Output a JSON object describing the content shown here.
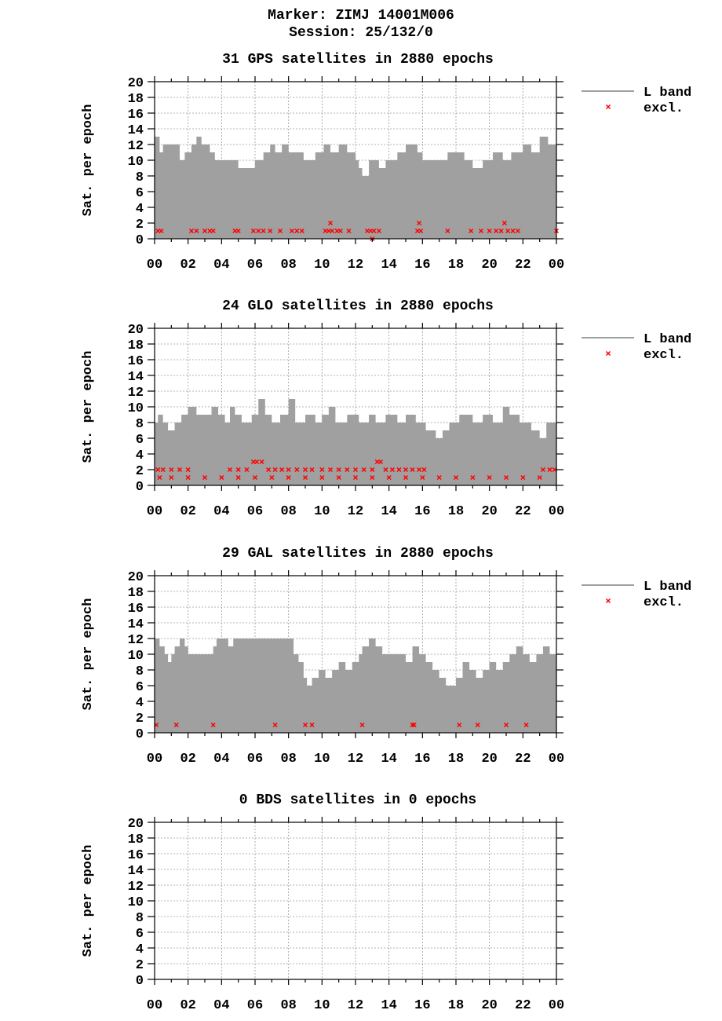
{
  "header": {
    "marker": "Marker: ZIMJ 14001M006",
    "session": "Session: 25/132/0"
  },
  "colors": {
    "l_band": "#a0a0a0",
    "excl": "#ff0000",
    "grid": "#9a9a9a"
  },
  "chart_data": [
    {
      "type": "area",
      "title": "31 GPS satellites in 2880 epochs",
      "ylabel": "Sat. per epoch",
      "ylim": [
        0,
        20
      ],
      "xlim": [
        0,
        24
      ],
      "yticks": [
        "0",
        "2",
        "4",
        "6",
        "8",
        "10",
        "12",
        "14",
        "16",
        "18",
        "20"
      ],
      "xticks": [
        "00",
        "02",
        "04",
        "06",
        "08",
        "10",
        "12",
        "14",
        "16",
        "18",
        "20",
        "22",
        "00"
      ],
      "legend": [
        "L band",
        "excl."
      ],
      "grid": true,
      "legend_position": "right",
      "series": [
        {
          "name": "L band",
          "x": [
            0,
            0.3,
            0.5,
            1.5,
            1.8,
            2.2,
            2.5,
            2.8,
            3.3,
            3.6,
            5,
            6,
            6.5,
            6.9,
            7.2,
            7.6,
            8,
            8.9,
            9.6,
            10.1,
            10.5,
            11,
            11.5,
            12,
            12.2,
            12.4,
            12.8,
            13.4,
            13.8,
            14.5,
            15,
            15.7,
            16,
            16.5,
            17.5,
            18.5,
            19,
            19.6,
            20.2,
            20.8,
            21.3,
            22,
            22.5,
            23,
            23.5,
            24
          ],
          "values": [
            13,
            11,
            12,
            10,
            11,
            12,
            13,
            12,
            11,
            10,
            9,
            10,
            11,
            12,
            11,
            12,
            11,
            10,
            11,
            12,
            11,
            12,
            11,
            10,
            9,
            8,
            10,
            9,
            10,
            11,
            12,
            11,
            10,
            10,
            11,
            10,
            9,
            10,
            11,
            10,
            11,
            12,
            11,
            13,
            12,
            11
          ]
        },
        {
          "name": "excl.",
          "points": [
            [
              0.2,
              1
            ],
            [
              0.4,
              1
            ],
            [
              2.2,
              1
            ],
            [
              2.5,
              1
            ],
            [
              3,
              1
            ],
            [
              3.3,
              1
            ],
            [
              3.5,
              1
            ],
            [
              4.8,
              1
            ],
            [
              5.0,
              1
            ],
            [
              5.9,
              1
            ],
            [
              6.2,
              1
            ],
            [
              6.5,
              1
            ],
            [
              6.9,
              1
            ],
            [
              7.5,
              1
            ],
            [
              8.2,
              1
            ],
            [
              8.5,
              1
            ],
            [
              8.8,
              1
            ],
            [
              10.2,
              1
            ],
            [
              10.4,
              1
            ],
            [
              10.5,
              2
            ],
            [
              10.6,
              1
            ],
            [
              10.9,
              1
            ],
            [
              11.1,
              1
            ],
            [
              11.6,
              1
            ],
            [
              12.7,
              1
            ],
            [
              12.9,
              1
            ],
            [
              13.0,
              0
            ],
            [
              13.1,
              1
            ],
            [
              13.4,
              1
            ],
            [
              15.7,
              1
            ],
            [
              15.8,
              2
            ],
            [
              15.9,
              1
            ],
            [
              17.5,
              1
            ],
            [
              18.9,
              1
            ],
            [
              19.5,
              1
            ],
            [
              20.0,
              1
            ],
            [
              20.4,
              1
            ],
            [
              20.7,
              1
            ],
            [
              20.9,
              2
            ],
            [
              21.1,
              1
            ],
            [
              21.4,
              1
            ],
            [
              21.7,
              1
            ],
            [
              24,
              1
            ]
          ]
        }
      ]
    },
    {
      "type": "area",
      "title": "24 GLO satellites in 2880 epochs",
      "ylabel": "Sat. per epoch",
      "ylim": [
        0,
        20
      ],
      "xlim": [
        0,
        24
      ],
      "yticks": [
        "0",
        "2",
        "4",
        "6",
        "8",
        "10",
        "12",
        "14",
        "16",
        "18",
        "20"
      ],
      "xticks": [
        "00",
        "02",
        "04",
        "06",
        "08",
        "10",
        "12",
        "14",
        "16",
        "18",
        "20",
        "22",
        "00"
      ],
      "legend": [
        "L band",
        "excl."
      ],
      "grid": true,
      "legend_position": "right",
      "series": [
        {
          "name": "L band",
          "x": [
            0,
            0.2,
            0.5,
            0.8,
            1.2,
            1.6,
            2.0,
            2.5,
            3.0,
            3.4,
            3.8,
            4.2,
            4.5,
            4.8,
            5.2,
            5.8,
            6.2,
            6.6,
            7.0,
            7.5,
            8.0,
            8.4,
            9.0,
            9.6,
            10.0,
            10.4,
            10.8,
            11.5,
            12.2,
            12.8,
            13.2,
            13.8,
            14.5,
            15.0,
            15.6,
            16.2,
            16.8,
            17.2,
            17.6,
            18.2,
            19.0,
            19.6,
            20.2,
            20.8,
            21.2,
            21.8,
            22.5,
            23.0,
            23.4,
            24
          ],
          "values": [
            8,
            9,
            8,
            7,
            8,
            9,
            10,
            9,
            9,
            10,
            9,
            8,
            10,
            9,
            8,
            9,
            11,
            9,
            8,
            9,
            11,
            8,
            9,
            8,
            9,
            10,
            8,
            9,
            8,
            9,
            8,
            9,
            8,
            9,
            8,
            7,
            6,
            7,
            8,
            9,
            8,
            9,
            8,
            10,
            9,
            8,
            7,
            6,
            8,
            8
          ]
        },
        {
          "name": "excl.",
          "points": [
            [
              0.2,
              2
            ],
            [
              0.5,
              2
            ],
            [
              1.0,
              2
            ],
            [
              1.5,
              2
            ],
            [
              2.0,
              2
            ],
            [
              4.5,
              2
            ],
            [
              5.0,
              2
            ],
            [
              5.5,
              2
            ],
            [
              5.9,
              3
            ],
            [
              6.1,
              3
            ],
            [
              6.4,
              3
            ],
            [
              6.8,
              2
            ],
            [
              7.2,
              2
            ],
            [
              7.6,
              2
            ],
            [
              8.0,
              2
            ],
            [
              8.5,
              2
            ],
            [
              9.0,
              2
            ],
            [
              9.4,
              2
            ],
            [
              10.0,
              2
            ],
            [
              10.5,
              2
            ],
            [
              11.0,
              2
            ],
            [
              11.5,
              2
            ],
            [
              12.0,
              2
            ],
            [
              12.5,
              2
            ],
            [
              13.0,
              2
            ],
            [
              13.3,
              3
            ],
            [
              13.5,
              3
            ],
            [
              13.8,
              2
            ],
            [
              14.2,
              2
            ],
            [
              14.6,
              2
            ],
            [
              15.0,
              2
            ],
            [
              15.4,
              2
            ],
            [
              15.8,
              2
            ],
            [
              16.1,
              2
            ],
            [
              23.2,
              2
            ],
            [
              23.6,
              2
            ],
            [
              23.9,
              2
            ],
            [
              0.3,
              1
            ],
            [
              1.0,
              1
            ],
            [
              2.0,
              1
            ],
            [
              3.0,
              1
            ],
            [
              4.0,
              1
            ],
            [
              5.0,
              1
            ],
            [
              6.0,
              1
            ],
            [
              7.0,
              1
            ],
            [
              8.0,
              1
            ],
            [
              9.0,
              1
            ],
            [
              10.0,
              1
            ],
            [
              11.0,
              1
            ],
            [
              12.0,
              1
            ],
            [
              13.0,
              1
            ],
            [
              14.0,
              1
            ],
            [
              15.0,
              1
            ],
            [
              16.0,
              1
            ],
            [
              17.0,
              1
            ],
            [
              18.0,
              1
            ],
            [
              19.0,
              1
            ],
            [
              20.0,
              1
            ],
            [
              21.0,
              1
            ],
            [
              22.0,
              1
            ],
            [
              23.0,
              1
            ]
          ]
        }
      ]
    },
    {
      "type": "area",
      "title": "29 GAL satellites in 2880 epochs",
      "ylabel": "Sat. per epoch",
      "ylim": [
        0,
        20
      ],
      "xlim": [
        0,
        24
      ],
      "yticks": [
        "0",
        "2",
        "4",
        "6",
        "8",
        "10",
        "12",
        "14",
        "16",
        "18",
        "20"
      ],
      "xticks": [
        "00",
        "02",
        "04",
        "06",
        "08",
        "10",
        "12",
        "14",
        "16",
        "18",
        "20",
        "22",
        "00"
      ],
      "legend": [
        "L band",
        "excl."
      ],
      "grid": true,
      "legend_position": "right",
      "series": [
        {
          "name": "L band",
          "x": [
            0,
            0.3,
            0.6,
            0.8,
            1.0,
            1.2,
            1.5,
            1.8,
            2.0,
            2.5,
            3.0,
            3.5,
            3.7,
            4.0,
            4.4,
            4.7,
            5.0,
            5.5,
            6.0,
            7.0,
            8.0,
            8.3,
            8.6,
            8.9,
            9.1,
            9.4,
            9.8,
            10.2,
            10.6,
            11.0,
            11.4,
            11.8,
            12.2,
            12.4,
            12.8,
            13.2,
            13.6,
            14.0,
            14.5,
            15.0,
            15.4,
            15.8,
            16.2,
            16.6,
            17.0,
            17.4,
            18.0,
            18.4,
            18.8,
            19.2,
            19.6,
            20.0,
            20.4,
            20.8,
            21.2,
            21.6,
            22.0,
            22.4,
            22.8,
            23.2,
            23.6,
            24
          ],
          "values": [
            12,
            11,
            10,
            9,
            10,
            11,
            12,
            11,
            10,
            10,
            10,
            11,
            12,
            12,
            11,
            12,
            12,
            12,
            12,
            12,
            12,
            10,
            9,
            7,
            6,
            7,
            8,
            7,
            8,
            9,
            8,
            9,
            10,
            11,
            12,
            11,
            10,
            10,
            10,
            9,
            11,
            10,
            9,
            8,
            7,
            6,
            7,
            9,
            8,
            7,
            8,
            9,
            8,
            9,
            10,
            11,
            10,
            9,
            10,
            11,
            10,
            12
          ]
        },
        {
          "name": "excl.",
          "points": [
            [
              0.1,
              1
            ],
            [
              1.3,
              1
            ],
            [
              3.5,
              1
            ],
            [
              7.2,
              1
            ],
            [
              9.0,
              1
            ],
            [
              9.4,
              1
            ],
            [
              12.4,
              1
            ],
            [
              15.4,
              1
            ],
            [
              15.5,
              1
            ],
            [
              18.2,
              1
            ],
            [
              19.3,
              1
            ],
            [
              21.0,
              1
            ],
            [
              22.2,
              1
            ]
          ]
        }
      ]
    },
    {
      "type": "area",
      "title": "0 BDS satellites in 0 epochs",
      "ylabel": "Sat. per epoch",
      "ylim": [
        0,
        20
      ],
      "xlim": [
        0,
        24
      ],
      "yticks": [
        "0",
        "2",
        "4",
        "6",
        "8",
        "10",
        "12",
        "14",
        "16",
        "18",
        "20"
      ],
      "xticks": [
        "00",
        "02",
        "04",
        "06",
        "08",
        "10",
        "12",
        "14",
        "16",
        "18",
        "20",
        "22",
        "00"
      ],
      "legend": [],
      "grid": true,
      "legend_position": "right",
      "series": []
    }
  ]
}
